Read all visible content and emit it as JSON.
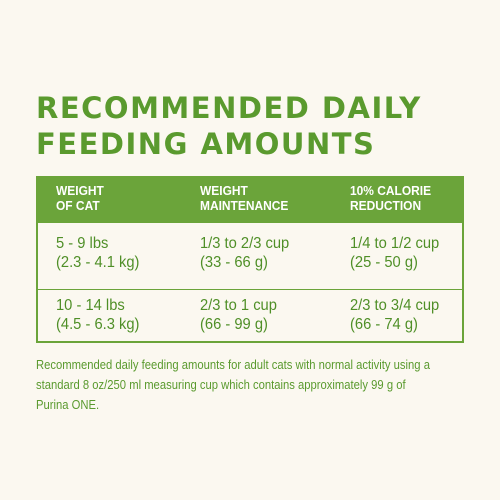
{
  "title": {
    "line1": "RECOMMENDED DAILY",
    "line2": "FEEDING AMOUNTS"
  },
  "table": {
    "headers": [
      {
        "line1": "WEIGHT",
        "line2": "OF CAT"
      },
      {
        "line1": "WEIGHT",
        "line2": "MAINTENANCE"
      },
      {
        "line1": "10% CALORIE",
        "line2": "REDUCTION"
      }
    ],
    "rows": [
      [
        {
          "line1": "5 - 9 lbs",
          "line2": "(2.3 - 4.1 kg)"
        },
        {
          "line1": "1/3 to 2/3 cup",
          "line2": "(33 - 66 g)"
        },
        {
          "line1": "1/4 to 1/2 cup",
          "line2": "(25 - 50 g)"
        }
      ],
      [
        {
          "line1": "10 - 14 lbs",
          "line2": "(4.5 - 6.3 kg)"
        },
        {
          "line1": "2/3 to 1 cup",
          "line2": "(66 - 99 g)"
        },
        {
          "line1": "2/3 to 3/4 cup",
          "line2": "(66 - 74 g)"
        }
      ]
    ]
  },
  "footnote": "Recommended daily feeding amounts for adult cats with normal activity using a standard 8 oz/250 ml measuring cup which contains approximately 99 g of Purina ONE.",
  "colors": {
    "accent_green": "#6ba43a",
    "text_green": "#4f8f27",
    "background": "#fbf8f0"
  }
}
